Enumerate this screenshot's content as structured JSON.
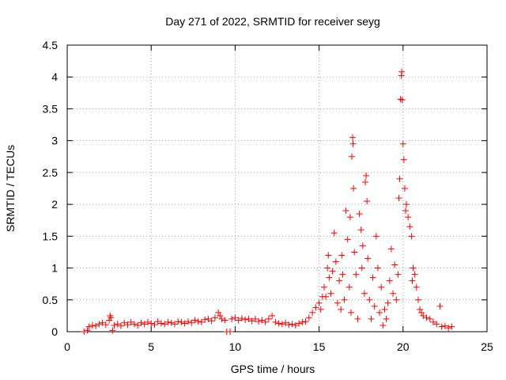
{
  "chart_data": {
    "type": "scatter",
    "title": "Day 271 of 2022, SRMTID for receiver seyg",
    "xlabel": "GPS time / hours",
    "ylabel": "SRMTID / TECUs",
    "xlim": [
      0,
      25
    ],
    "ylim": [
      0,
      4.5
    ],
    "x_ticks": [
      "0",
      "5",
      "10",
      "15",
      "20",
      "25"
    ],
    "y_ticks": [
      "0",
      "0.5",
      "1",
      "1.5",
      "2",
      "2.5",
      "3",
      "3.5",
      "4",
      "4.5"
    ],
    "grid": true,
    "marker": "plus",
    "color": "#ff0000",
    "series": [
      {
        "name": "seyg",
        "points": [
          [
            1.0,
            0.0
          ],
          [
            1.2,
            0.02
          ],
          [
            1.3,
            0.08
          ],
          [
            1.5,
            0.1
          ],
          [
            1.7,
            0.09
          ],
          [
            1.9,
            0.12
          ],
          [
            2.1,
            0.14
          ],
          [
            2.3,
            0.11
          ],
          [
            2.5,
            0.18
          ],
          [
            2.55,
            0.25
          ],
          [
            2.6,
            0.22
          ],
          [
            2.7,
            0.02
          ],
          [
            2.8,
            0.1
          ],
          [
            3.0,
            0.12
          ],
          [
            3.2,
            0.09
          ],
          [
            3.4,
            0.14
          ],
          [
            3.6,
            0.11
          ],
          [
            3.8,
            0.15
          ],
          [
            4.0,
            0.12
          ],
          [
            4.2,
            0.1
          ],
          [
            4.4,
            0.14
          ],
          [
            4.6,
            0.12
          ],
          [
            4.8,
            0.15
          ],
          [
            5.0,
            0.13
          ],
          [
            5.2,
            0.11
          ],
          [
            5.4,
            0.16
          ],
          [
            5.6,
            0.13
          ],
          [
            5.8,
            0.12
          ],
          [
            6.0,
            0.15
          ],
          [
            6.2,
            0.14
          ],
          [
            6.4,
            0.12
          ],
          [
            6.6,
            0.16
          ],
          [
            6.8,
            0.15
          ],
          [
            7.0,
            0.13
          ],
          [
            7.2,
            0.16
          ],
          [
            7.4,
            0.14
          ],
          [
            7.6,
            0.18
          ],
          [
            7.8,
            0.16
          ],
          [
            8.0,
            0.15
          ],
          [
            8.2,
            0.19
          ],
          [
            8.4,
            0.2
          ],
          [
            8.6,
            0.17
          ],
          [
            8.8,
            0.22
          ],
          [
            9.0,
            0.3
          ],
          [
            9.1,
            0.25
          ],
          [
            9.2,
            0.2
          ],
          [
            9.4,
            0.18
          ],
          [
            9.5,
            0.0
          ],
          [
            9.7,
            0.0
          ],
          [
            9.8,
            0.2
          ],
          [
            10.0,
            0.22
          ],
          [
            10.2,
            0.18
          ],
          [
            10.4,
            0.21
          ],
          [
            10.6,
            0.19
          ],
          [
            10.8,
            0.2
          ],
          [
            11.0,
            0.17
          ],
          [
            11.2,
            0.2
          ],
          [
            11.4,
            0.16
          ],
          [
            11.6,
            0.18
          ],
          [
            11.8,
            0.15
          ],
          [
            12.0,
            0.2
          ],
          [
            12.2,
            0.25
          ],
          [
            12.4,
            0.15
          ],
          [
            12.6,
            0.13
          ],
          [
            12.8,
            0.12
          ],
          [
            13.0,
            0.14
          ],
          [
            13.2,
            0.11
          ],
          [
            13.4,
            0.12
          ],
          [
            13.6,
            0.1
          ],
          [
            13.8,
            0.13
          ],
          [
            14.0,
            0.15
          ],
          [
            14.2,
            0.16
          ],
          [
            14.4,
            0.22
          ],
          [
            14.6,
            0.3
          ],
          [
            14.8,
            0.38
          ],
          [
            15.0,
            0.45
          ],
          [
            15.1,
            0.35
          ],
          [
            15.2,
            0.55
          ],
          [
            15.3,
            0.7
          ],
          [
            15.4,
            0.55
          ],
          [
            15.5,
            1.0
          ],
          [
            15.55,
            1.2
          ],
          [
            15.6,
            0.85
          ],
          [
            15.7,
            0.6
          ],
          [
            15.8,
            0.95
          ],
          [
            15.9,
            1.55
          ],
          [
            16.0,
            1.1
          ],
          [
            16.1,
            0.45
          ],
          [
            16.2,
            0.8
          ],
          [
            16.3,
            0.35
          ],
          [
            16.35,
            1.2
          ],
          [
            16.4,
            0.9
          ],
          [
            16.5,
            0.5
          ],
          [
            16.6,
            1.9
          ],
          [
            16.7,
            1.45
          ],
          [
            16.8,
            0.7
          ],
          [
            16.85,
            1.8
          ],
          [
            16.9,
            0.3
          ],
          [
            16.95,
            2.75
          ],
          [
            17.0,
            3.05
          ],
          [
            17.02,
            2.95
          ],
          [
            17.05,
            2.25
          ],
          [
            17.1,
            1.25
          ],
          [
            17.2,
            0.9
          ],
          [
            17.3,
            0.2
          ],
          [
            17.4,
            1.85
          ],
          [
            17.5,
            1.6
          ],
          [
            17.55,
            1.0
          ],
          [
            17.6,
            1.35
          ],
          [
            17.7,
            0.6
          ],
          [
            17.75,
            2.35
          ],
          [
            17.8,
            2.45
          ],
          [
            17.85,
            2.05
          ],
          [
            17.9,
            1.15
          ],
          [
            18.0,
            0.5
          ],
          [
            18.1,
            0.2
          ],
          [
            18.2,
            0.85
          ],
          [
            18.3,
            0.4
          ],
          [
            18.4,
            1.5
          ],
          [
            18.5,
            1.0
          ],
          [
            18.6,
            0.3
          ],
          [
            18.7,
            0.7
          ],
          [
            18.8,
            0.1
          ],
          [
            18.9,
            0.35
          ],
          [
            19.0,
            0.2
          ],
          [
            19.1,
            0.45
          ],
          [
            19.2,
            0.8
          ],
          [
            19.3,
            1.3
          ],
          [
            19.4,
            0.6
          ],
          [
            19.5,
            1.05
          ],
          [
            19.6,
            0.5
          ],
          [
            19.7,
            0.9
          ],
          [
            19.75,
            2.1
          ],
          [
            19.8,
            2.4
          ],
          [
            19.85,
            3.65
          ],
          [
            19.9,
            4.02
          ],
          [
            19.92,
            4.08
          ],
          [
            19.95,
            3.64
          ],
          [
            20.0,
            2.95
          ],
          [
            20.05,
            2.7
          ],
          [
            20.1,
            2.25
          ],
          [
            20.15,
            1.9
          ],
          [
            20.2,
            2.0
          ],
          [
            20.3,
            1.8
          ],
          [
            20.4,
            1.65
          ],
          [
            20.5,
            1.5
          ],
          [
            20.55,
            0.8
          ],
          [
            20.6,
            1.0
          ],
          [
            20.7,
            0.9
          ],
          [
            20.8,
            0.7
          ],
          [
            20.9,
            0.5
          ],
          [
            21.0,
            0.35
          ],
          [
            21.1,
            0.3
          ],
          [
            21.2,
            0.25
          ],
          [
            21.4,
            0.22
          ],
          [
            21.6,
            0.2
          ],
          [
            21.8,
            0.15
          ],
          [
            22.0,
            0.12
          ],
          [
            22.2,
            0.4
          ],
          [
            22.3,
            0.08
          ],
          [
            22.5,
            0.09
          ],
          [
            22.7,
            0.06
          ],
          [
            22.9,
            0.08
          ]
        ]
      }
    ]
  }
}
